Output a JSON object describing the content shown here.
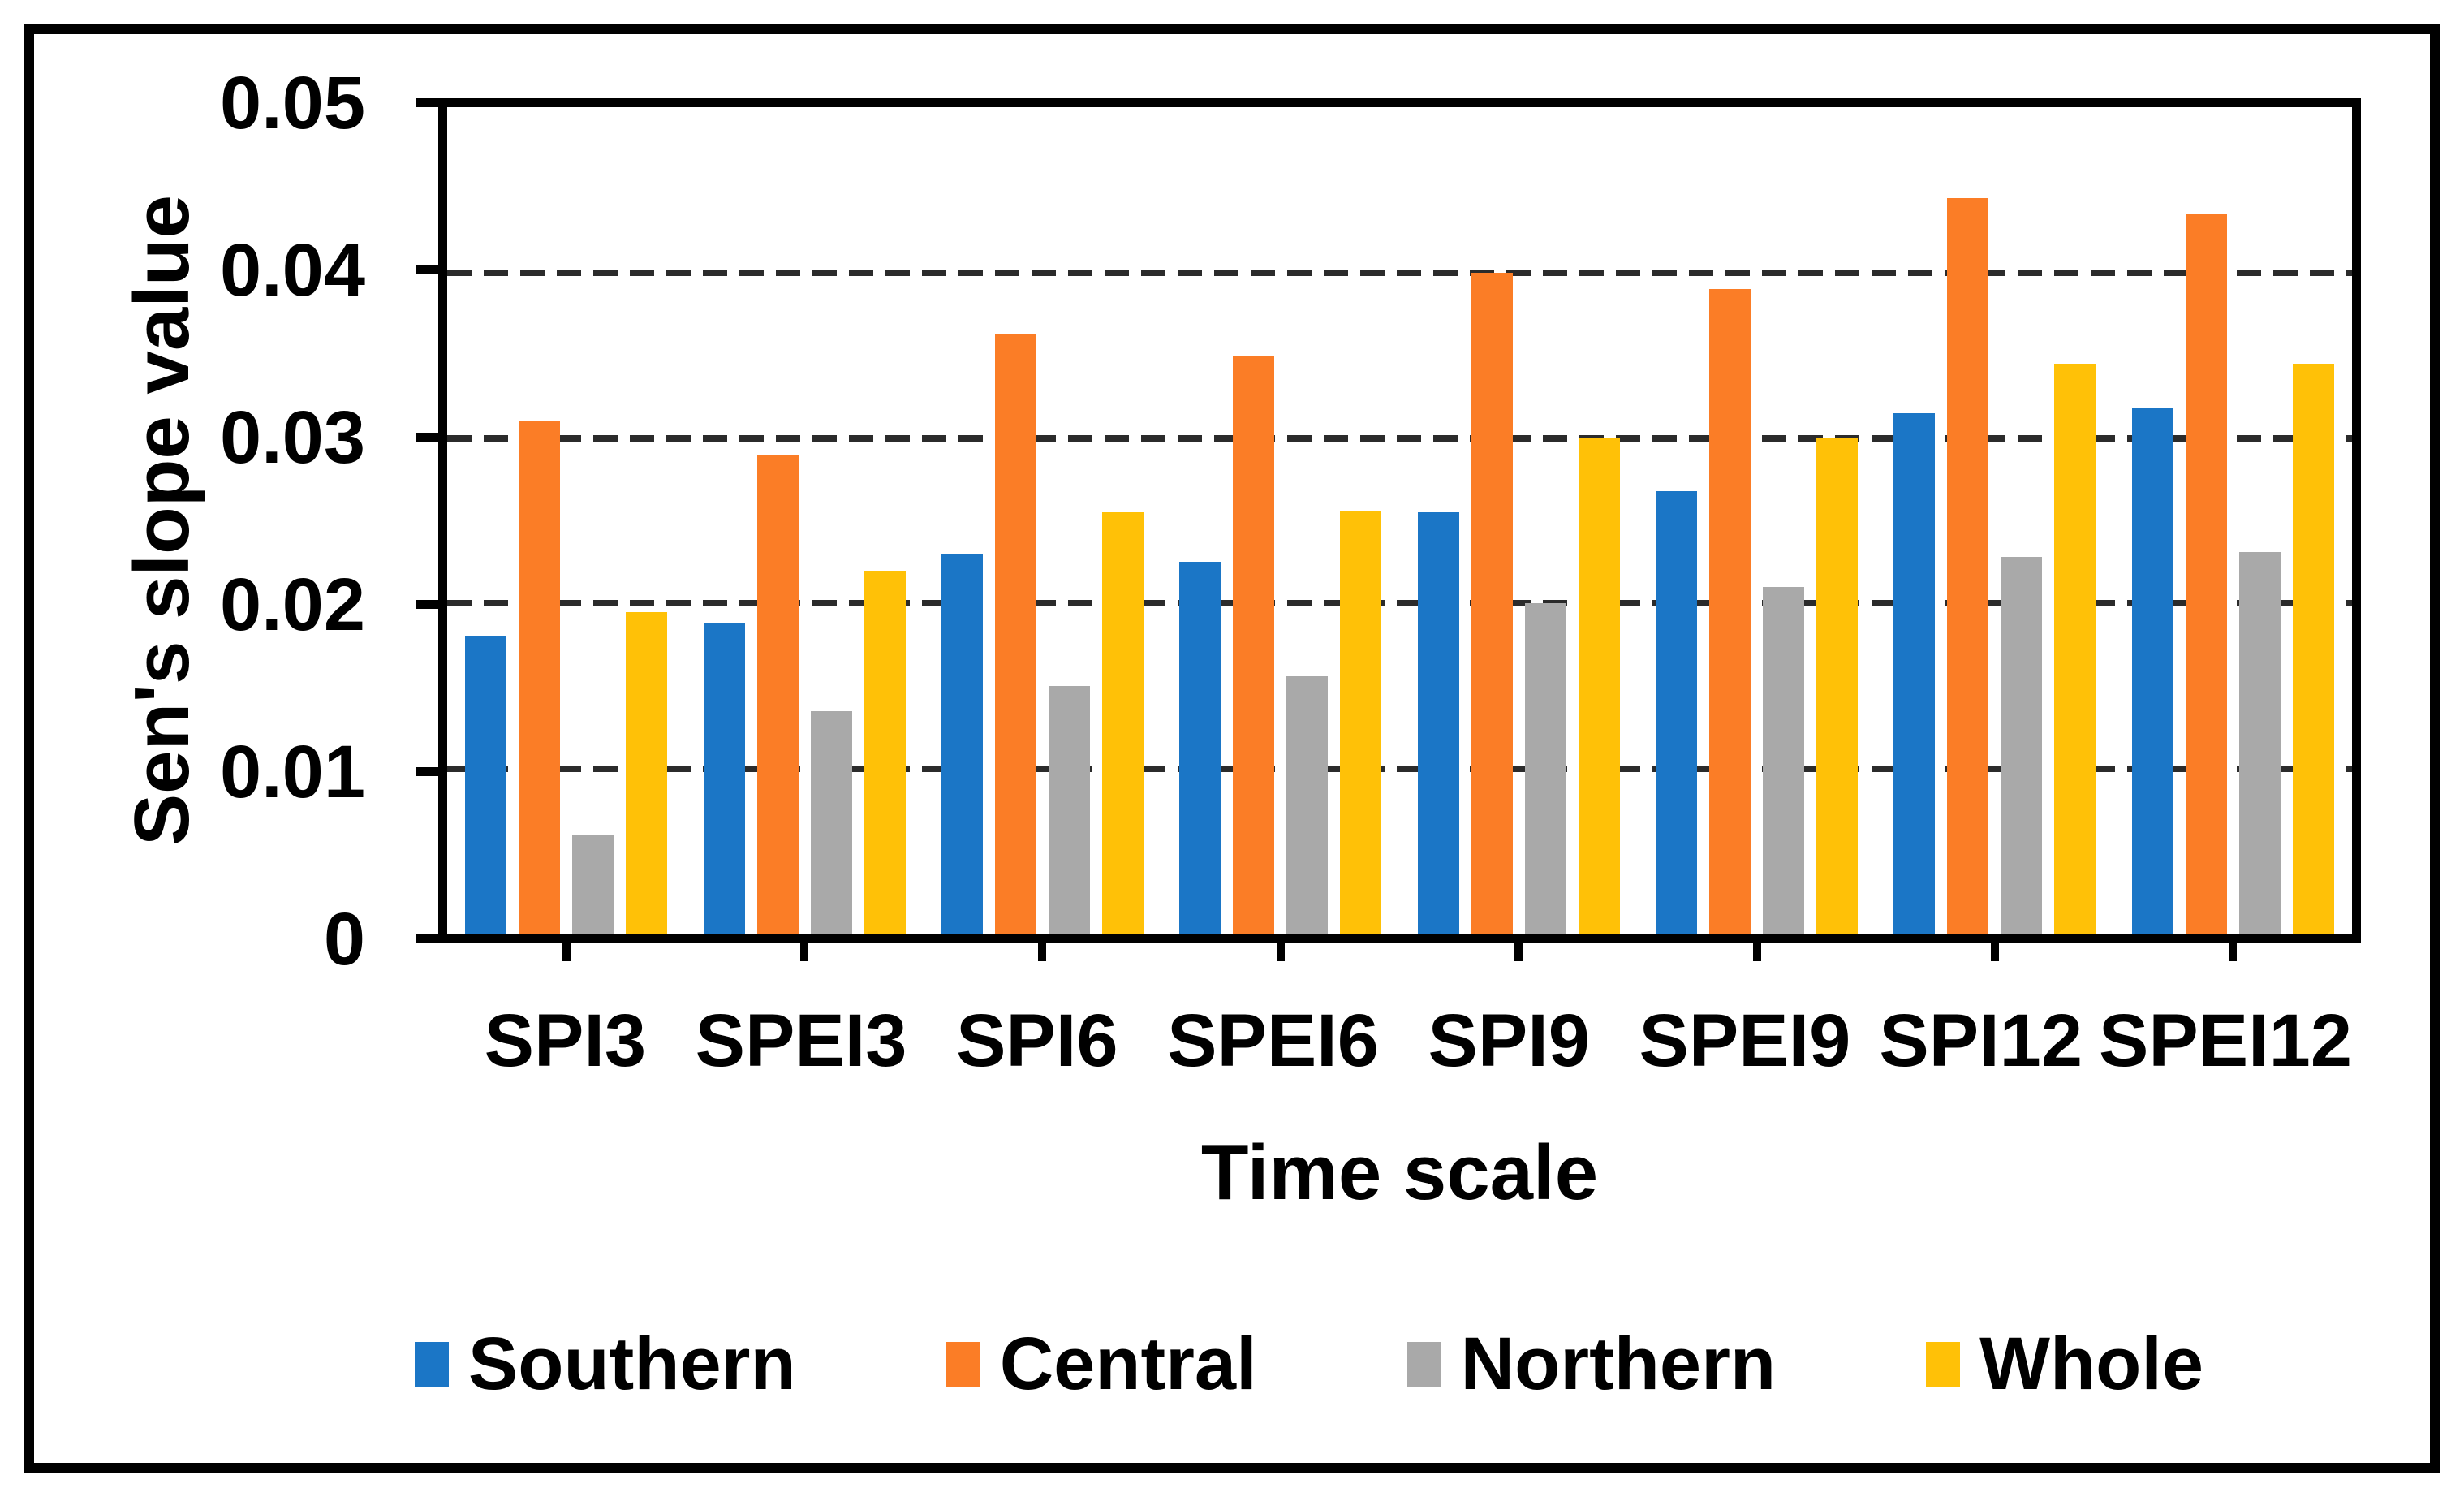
{
  "figure": {
    "background_color": "#ffffff",
    "frame_color": "#000000",
    "gridline_color": "#2b2b2b"
  },
  "chart_data": {
    "type": "bar",
    "title": "",
    "xlabel": "Time scale",
    "ylabel": "Sen's slope value",
    "ylim": [
      0,
      0.05
    ],
    "yticks": [
      0,
      0.01,
      0.02,
      0.03,
      0.04,
      0.05
    ],
    "ytick_labels": [
      "0",
      "0.01",
      "0.02",
      "0.03",
      "0.04",
      "0.05"
    ],
    "grid": "horizontal-dashed",
    "legend_position": "bottom",
    "categories": [
      "SPI3",
      "SPEI3",
      "SPI6",
      "SPEI6",
      "SPI9",
      "SPEI9",
      "SPI12",
      "SPEI12"
    ],
    "series": [
      {
        "name": "Southern",
        "color": "#1B76C6",
        "values": [
          0.018,
          0.0188,
          0.023,
          0.0225,
          0.0255,
          0.0268,
          0.0315,
          0.0318
        ]
      },
      {
        "name": "Central",
        "color": "#FB7D26",
        "values": [
          0.031,
          0.029,
          0.0363,
          0.035,
          0.04,
          0.039,
          0.0445,
          0.0435
        ]
      },
      {
        "name": "Northern",
        "color": "#A9A9A9",
        "values": [
          0.006,
          0.0135,
          0.015,
          0.0156,
          0.02,
          0.021,
          0.0228,
          0.0231
        ]
      },
      {
        "name": "Whole",
        "color": "#FFC107",
        "values": [
          0.0195,
          0.022,
          0.0255,
          0.0256,
          0.03,
          0.03,
          0.0345,
          0.0345
        ]
      }
    ]
  }
}
